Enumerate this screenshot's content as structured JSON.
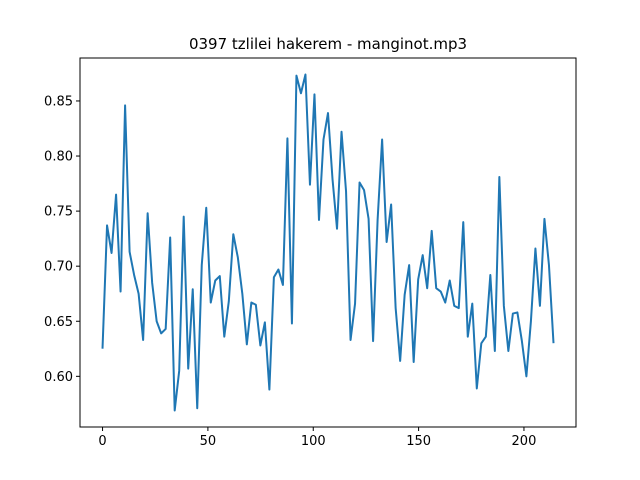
{
  "chart_data": {
    "type": "line",
    "title": "0397 tzlilei hakerem - manginot.mp3",
    "xlabel": "",
    "ylabel": "",
    "xlim": [
      -10.7,
      224.7
    ],
    "ylim": [
      0.554,
      0.889
    ],
    "grid": false,
    "color": "#1f77b4",
    "x_ticks": [
      0,
      50,
      100,
      150,
      200
    ],
    "x_tick_labels": [
      "0",
      "50",
      "100",
      "150",
      "200"
    ],
    "y_ticks": [
      0.6,
      0.65,
      0.7,
      0.75,
      0.8,
      0.85
    ],
    "y_tick_labels": [
      "0.60",
      "0.65",
      "0.70",
      "0.75",
      "0.80",
      "0.85"
    ],
    "series": [
      {
        "name": "",
        "x_start": 0,
        "x_step": 2.14,
        "values": [
          0.626,
          0.737,
          0.712,
          0.765,
          0.677,
          0.846,
          0.713,
          0.692,
          0.675,
          0.633,
          0.748,
          0.685,
          0.65,
          0.639,
          0.643,
          0.726,
          0.569,
          0.605,
          0.745,
          0.607,
          0.679,
          0.571,
          0.701,
          0.753,
          0.667,
          0.687,
          0.691,
          0.636,
          0.668,
          0.729,
          0.708,
          0.675,
          0.629,
          0.667,
          0.665,
          0.628,
          0.649,
          0.588,
          0.69,
          0.697,
          0.683,
          0.816,
          0.648,
          0.873,
          0.857,
          0.874,
          0.774,
          0.856,
          0.742,
          0.815,
          0.839,
          0.779,
          0.734,
          0.822,
          0.768,
          0.633,
          0.666,
          0.776,
          0.769,
          0.743,
          0.632,
          0.742,
          0.815,
          0.722,
          0.756,
          0.662,
          0.614,
          0.674,
          0.701,
          0.613,
          0.688,
          0.71,
          0.68,
          0.732,
          0.68,
          0.677,
          0.667,
          0.687,
          0.664,
          0.662,
          0.74,
          0.636,
          0.666,
          0.589,
          0.63,
          0.636,
          0.692,
          0.623,
          0.781,
          0.664,
          0.623,
          0.657,
          0.658,
          0.632,
          0.6,
          0.65,
          0.716,
          0.664,
          0.743,
          0.701,
          0.631
        ]
      }
    ]
  }
}
